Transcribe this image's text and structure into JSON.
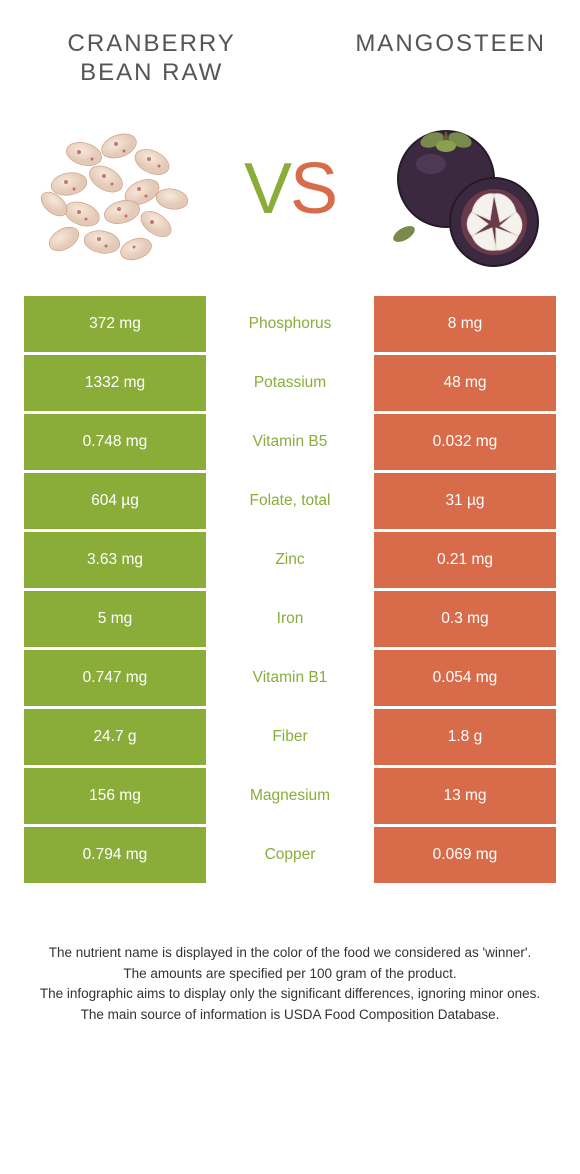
{
  "titles": {
    "left": "CRANBERRY BEAN RAW",
    "right": "MANGOSTEEN"
  },
  "vs": {
    "v": "V",
    "s": "S"
  },
  "colors": {
    "left": "#8aad3a",
    "right": "#d76b4a",
    "bg": "#ffffff"
  },
  "rows": [
    {
      "left": "372 mg",
      "label": "Phosphorus",
      "right": "8 mg",
      "winner": "left"
    },
    {
      "left": "1332 mg",
      "label": "Potassium",
      "right": "48 mg",
      "winner": "left"
    },
    {
      "left": "0.748 mg",
      "label": "Vitamin B5",
      "right": "0.032 mg",
      "winner": "left"
    },
    {
      "left": "604 µg",
      "label": "Folate, total",
      "right": "31 µg",
      "winner": "left"
    },
    {
      "left": "3.63 mg",
      "label": "Zinc",
      "right": "0.21 mg",
      "winner": "left"
    },
    {
      "left": "5 mg",
      "label": "Iron",
      "right": "0.3 mg",
      "winner": "left"
    },
    {
      "left": "0.747 mg",
      "label": "Vitamin B1",
      "right": "0.054 mg",
      "winner": "left"
    },
    {
      "left": "24.7 g",
      "label": "Fiber",
      "right": "1.8 g",
      "winner": "left"
    },
    {
      "left": "156 mg",
      "label": "Magnesium",
      "right": "13 mg",
      "winner": "left"
    },
    {
      "left": "0.794 mg",
      "label": "Copper",
      "right": "0.069 mg",
      "winner": "left"
    }
  ],
  "footnote": {
    "l1": "The nutrient name is displayed in the color of the food we considered as 'winner'.",
    "l2": "The amounts are specified per 100 gram of the product.",
    "l3": "The infographic aims to display only the significant differences, ignoring minor ones.",
    "l4": "The main source of information is USDA Food Composition Database."
  }
}
